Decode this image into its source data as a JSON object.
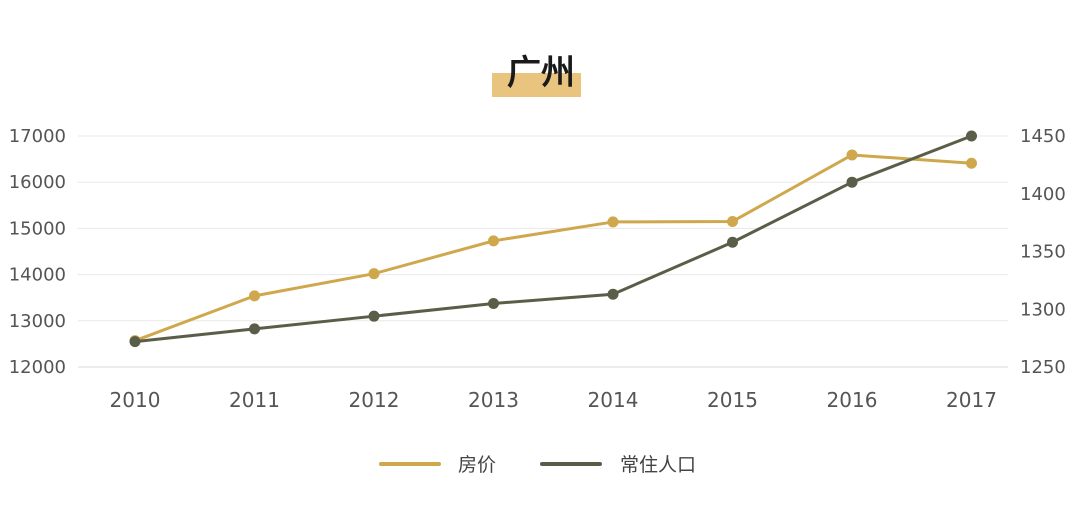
{
  "chart_data": {
    "type": "line",
    "title": "广州",
    "categories": [
      "2010",
      "2011",
      "2012",
      "2013",
      "2014",
      "2015",
      "2016",
      "2017"
    ],
    "series": [
      {
        "name": "房价",
        "axis": "left",
        "color": "#cfa84e",
        "values": [
          12570,
          13540,
          14020,
          14730,
          15140,
          15150,
          16590,
          16410
        ]
      },
      {
        "name": "常住人口",
        "axis": "right",
        "color": "#5a5e48",
        "values": [
          1272,
          1283,
          1294,
          1305,
          1313,
          1358,
          1410,
          1450
        ]
      }
    ],
    "y_left": {
      "min": 12000,
      "max": 17000,
      "ticks": [
        "12000",
        "13000",
        "14000",
        "15000",
        "16000",
        "17000"
      ]
    },
    "y_right": {
      "min": 1250,
      "max": 1450,
      "ticks": [
        "1250",
        "1300",
        "1350",
        "1400",
        "1450"
      ]
    },
    "grid": true,
    "legend_position": "bottom",
    "title_highlight_color": "#e9c47e"
  }
}
